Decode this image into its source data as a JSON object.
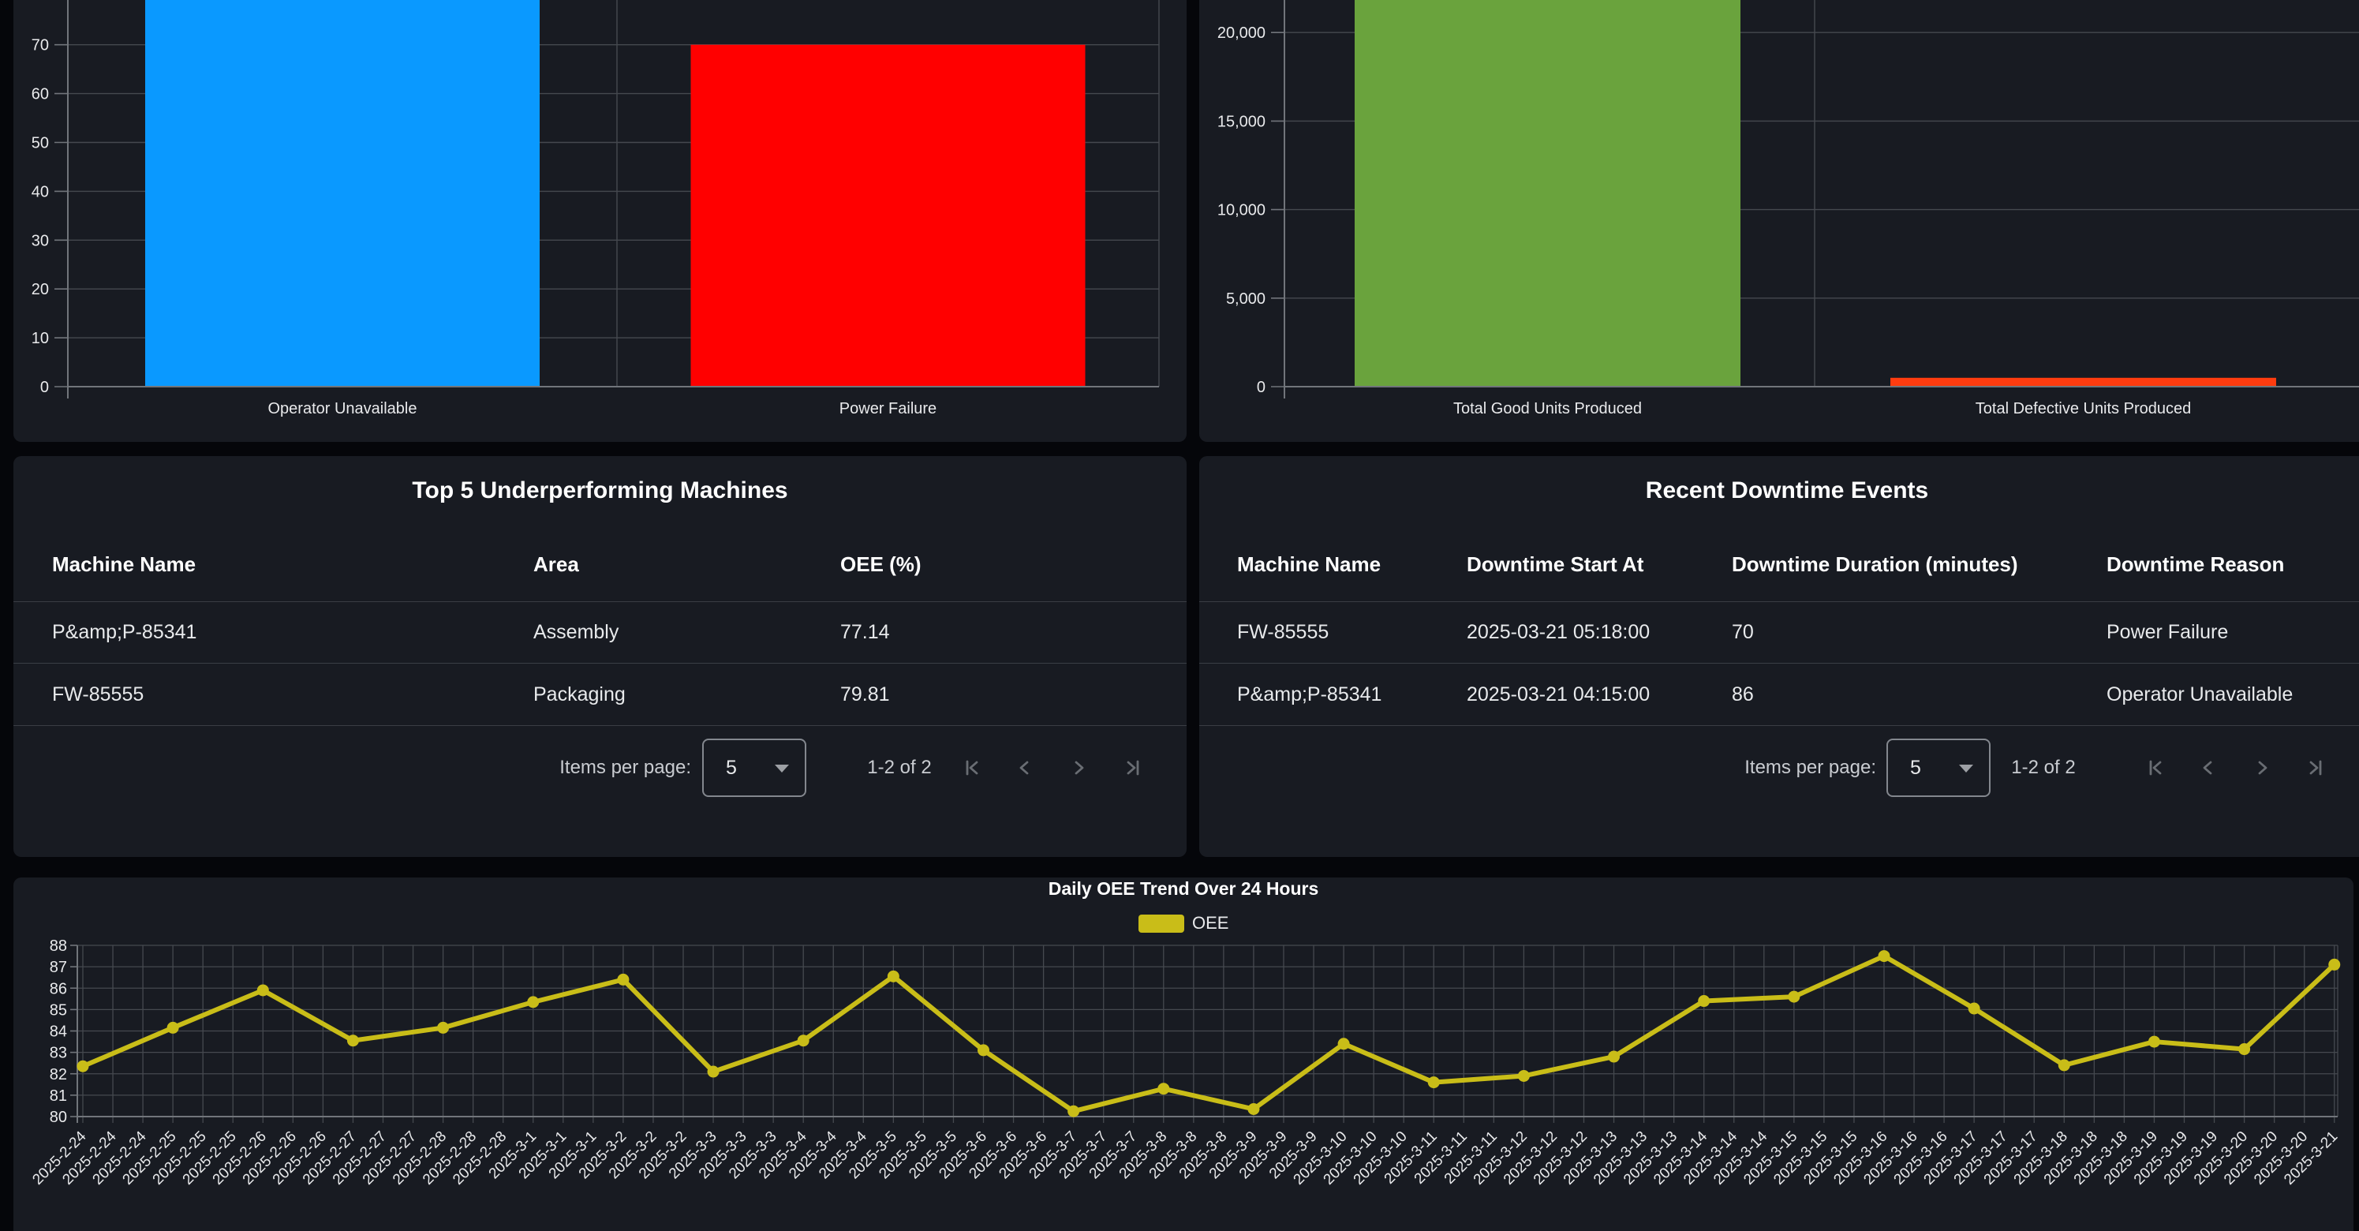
{
  "colors": {
    "page_bg": "#05060a",
    "card_bg": "#181b22",
    "grid_line": "#45494f",
    "axis_line": "#71757b",
    "axis_text": "#e9eaec",
    "blue_bar": "#0a99ff",
    "red_bar": "#ff0000",
    "green_bar": "#6aa33d",
    "orange_bar": "#ff3c0f",
    "oee_yellow": "#c9bd18"
  },
  "chart_data": [
    {
      "id": "downtime-by-reason",
      "type": "bar",
      "categories": [
        "Operator Unavailable",
        "Power Failure"
      ],
      "values": [
        86,
        70
      ],
      "colors": [
        "#0a99ff",
        "#ff0000"
      ],
      "y_ticks": [
        0,
        10,
        20,
        30,
        40,
        50,
        60,
        70
      ],
      "note": "Chart is cropped by the top edge of the screenshot; the first bar extends past the top (value matches 86-minute downtime)."
    },
    {
      "id": "units-produced",
      "type": "bar",
      "categories": [
        "Total Good Units Produced",
        "Total Defective Units Produced"
      ],
      "values": [
        22500,
        500
      ],
      "clipped_at_top": [
        true,
        false
      ],
      "colors": [
        "#6aa33d",
        "#ff3c0f"
      ],
      "y_ticks": [
        {
          "value": 0,
          "label": "0"
        },
        {
          "value": 5000,
          "label": "5,000"
        },
        {
          "value": 10000,
          "label": "10,000"
        },
        {
          "value": 15000,
          "label": "15,000"
        },
        {
          "value": 20000,
          "label": "20,000"
        }
      ],
      "note": "Green bar is cropped by the top edge of the screenshot; its value is an estimate (> 21,900)."
    },
    {
      "id": "oee-trend",
      "type": "line",
      "title": "Daily OEE Trend Over 24 Hours",
      "legend": [
        "OEE"
      ],
      "color": "#c9bd18",
      "y_min": 80,
      "y_max": 88,
      "ticks_per_day": 3,
      "dates": [
        "2025-2-24",
        "2025-2-25",
        "2025-2-26",
        "2025-2-27",
        "2025-2-28",
        "2025-3-1",
        "2025-3-2",
        "2025-3-3",
        "2025-3-4",
        "2025-3-5",
        "2025-3-6",
        "2025-3-7",
        "2025-3-8",
        "2025-3-9",
        "2025-3-10",
        "2025-3-11",
        "2025-3-12",
        "2025-3-13",
        "2025-3-14",
        "2025-3-15",
        "2025-3-16",
        "2025-3-17",
        "2025-3-18",
        "2025-3-19",
        "2025-3-20",
        "2025-3-21"
      ],
      "values": [
        82.35,
        84.15,
        85.9,
        83.55,
        84.15,
        85.35,
        86.4,
        82.1,
        83.55,
        86.55,
        83.1,
        80.25,
        81.3,
        80.35,
        83.4,
        81.6,
        81.9,
        82.8,
        85.4,
        85.6,
        87.5,
        85.05,
        82.4,
        83.5,
        83.15,
        87.1
      ]
    }
  ],
  "tables": {
    "underperforming": {
      "title": "Top 5 Underperforming Machines",
      "columns": [
        "Machine Name",
        "Area",
        "OEE (%)"
      ],
      "rows": [
        [
          "P&amp;P-85341",
          "Assembly",
          "77.14"
        ],
        [
          "FW-85555",
          "Packaging",
          "79.81"
        ]
      ],
      "paginator": {
        "items_per_page_label": "Items per page:",
        "page_size": "5",
        "range_label": "1-2 of 2"
      }
    },
    "downtime_events": {
      "title": "Recent Downtime Events",
      "columns": [
        "Machine Name",
        "Downtime Start At",
        "Downtime Duration (minutes)",
        "Downtime Reason"
      ],
      "rows": [
        [
          "FW-85555",
          "2025-03-21 05:18:00",
          "70",
          "Power Failure"
        ],
        [
          "P&amp;P-85341",
          "2025-03-21 04:15:00",
          "86",
          "Operator Unavailable"
        ]
      ],
      "paginator": {
        "items_per_page_label": "Items per page:",
        "page_size": "5",
        "range_label": "1-2 of 2"
      }
    }
  }
}
